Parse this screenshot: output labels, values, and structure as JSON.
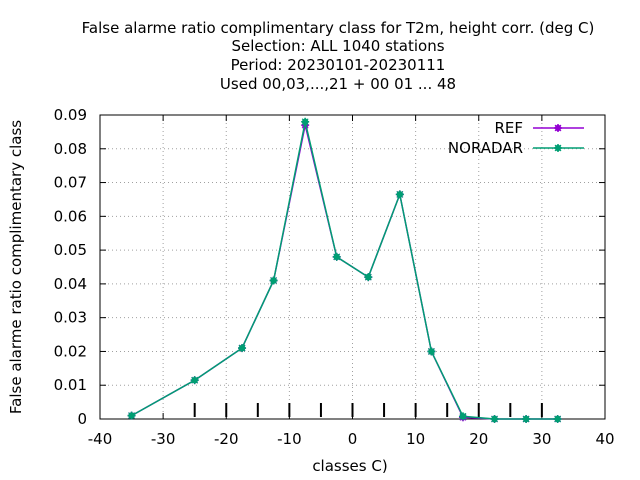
{
  "chart_data": {
    "type": "line",
    "title_lines": [
      "False alarme ratio complimentary class  for T2m, height corr. (deg C)",
      "Selection: ALL   1040 stations",
      "Period: 20230101-20230111",
      "Used  00,03,...,21  + 00 01 ... 48"
    ],
    "xlabel": "classes C)",
    "ylabel": "False alarme ratio complimentary class",
    "xlim": [
      -40,
      40
    ],
    "ylim": [
      0,
      0.09
    ],
    "xticks": [
      -40,
      -30,
      -20,
      -10,
      0,
      10,
      20,
      30,
      40
    ],
    "xtick_labels": [
      "-40",
      "-30",
      "-20",
      "-10",
      "0",
      "10",
      "20",
      "30",
      "40"
    ],
    "yticks": [
      0,
      0.01,
      0.02,
      0.03,
      0.04,
      0.05,
      0.06,
      0.07,
      0.08,
      0.09
    ],
    "ytick_labels": [
      "0",
      "0.01",
      "0.02",
      "0.03",
      "0.04",
      "0.05",
      "0.06",
      "0.07",
      "0.08",
      "0.09"
    ],
    "grid": true,
    "legend_position": "top-right",
    "class_markers": [
      -25,
      -20,
      -15,
      -10,
      -5,
      0,
      5,
      10,
      15,
      20,
      25,
      30
    ],
    "x": [
      -35,
      -25,
      -17.5,
      -12.5,
      -7.5,
      -2.5,
      2.5,
      7.5,
      12.5,
      17.5,
      22.5,
      27.5,
      32.5
    ],
    "series": [
      {
        "name": "REF",
        "color": "#9400d3",
        "values": [
          0.001,
          0.0115,
          0.021,
          0.041,
          0.087,
          0.048,
          0.042,
          0.0665,
          0.02,
          0.0005,
          0,
          0,
          0
        ]
      },
      {
        "name": "NORADAR",
        "color": "#009e73",
        "values": [
          0.001,
          0.0115,
          0.021,
          0.041,
          0.088,
          0.048,
          0.042,
          0.0665,
          0.02,
          0.0008,
          0,
          0,
          0
        ]
      }
    ]
  }
}
